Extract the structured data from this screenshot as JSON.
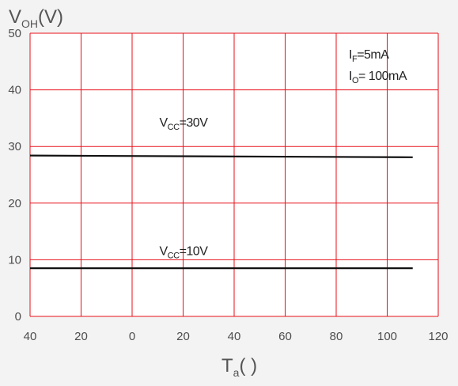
{
  "chart_data": {
    "type": "line",
    "xlabel": {
      "main": "T",
      "sub": "a",
      "unit": "(    )"
    },
    "ylabel": {
      "main": "V",
      "sub": "OH",
      "unit": "(V)"
    },
    "xlim": [
      -40,
      120
    ],
    "ylim": [
      0,
      50
    ],
    "x_ticks": [
      -40,
      -20,
      0,
      20,
      40,
      60,
      80,
      100,
      120
    ],
    "x_tick_labels": [
      "40",
      "20",
      "0",
      "20",
      "40",
      "60",
      "80",
      "100",
      "120"
    ],
    "y_ticks": [
      0,
      10,
      20,
      30,
      40,
      50
    ],
    "y_tick_labels": [
      "0",
      "10",
      "20",
      "30",
      "40",
      "50"
    ],
    "grid": true,
    "series": [
      {
        "name": "VCC=30V",
        "x": [
          -40,
          110
        ],
        "y": [
          28.4,
          28.1
        ]
      },
      {
        "name": "VCC=10V",
        "x": [
          -40,
          110
        ],
        "y": [
          8.5,
          8.5
        ]
      }
    ],
    "annotations": {
      "conditions": [
        {
          "main": "I",
          "sub": "F",
          "rest": "=5mA"
        },
        {
          "main": "I",
          "sub": "O",
          "rest": "= 100mA"
        }
      ],
      "series_labels": [
        {
          "main": "V",
          "sub": "CC",
          "rest": "=30V",
          "x": 20,
          "y": 33.5
        },
        {
          "main": "V",
          "sub": "CC",
          "rest": "=10V",
          "x": 20,
          "y": 10.8
        }
      ]
    },
    "colors": {
      "grid": "#e8101a",
      "line": "#111111",
      "background": "#ffffff",
      "page": "#f3f3f3"
    }
  }
}
